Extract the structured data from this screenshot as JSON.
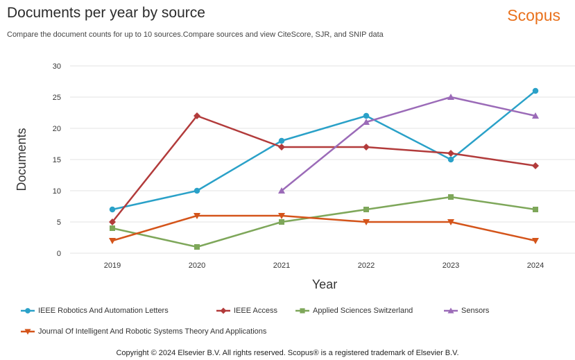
{
  "header": {
    "title": "Documents per year by source",
    "brand": "Scopus",
    "subtitle": "Compare the document counts for up to 10 sources.Compare sources and view CiteScore, SJR, and SNIP data"
  },
  "footer": {
    "copyright": "Copyright © 2024 Elsevier B.V. All rights reserved. Scopus® is a registered trademark of Elsevier B.V."
  },
  "chart_data": {
    "type": "line",
    "xlabel": "Year",
    "ylabel": "Documents",
    "x": [
      "2019",
      "2020",
      "2021",
      "2022",
      "2023",
      "2024"
    ],
    "yticks": [
      0,
      5,
      10,
      15,
      20,
      25,
      30
    ],
    "ylim": [
      0,
      30
    ],
    "grid": "horizontal",
    "legend_position": "bottom",
    "series": [
      {
        "name": "IEEE Robotics And Automation Letters",
        "color": "#2aa1c8",
        "marker": "circle",
        "values": [
          7,
          10,
          18,
          22,
          15,
          26
        ]
      },
      {
        "name": "IEEE Access",
        "color": "#b23b3b",
        "marker": "diamond",
        "values": [
          5,
          22,
          17,
          17,
          16,
          14
        ]
      },
      {
        "name": "Applied Sciences Switzerland",
        "color": "#7ea75a",
        "marker": "square",
        "values": [
          4,
          1,
          5,
          7,
          9,
          7
        ]
      },
      {
        "name": "Sensors",
        "color": "#9b6bb8",
        "marker": "triangle",
        "values": [
          null,
          null,
          10,
          21,
          25,
          22
        ]
      },
      {
        "name": "Journal Of Intelligent And Robotic Systems Theory And Applications",
        "color": "#d4541a",
        "marker": "triangle-down",
        "values": [
          2,
          6,
          6,
          5,
          5,
          2
        ]
      }
    ]
  }
}
